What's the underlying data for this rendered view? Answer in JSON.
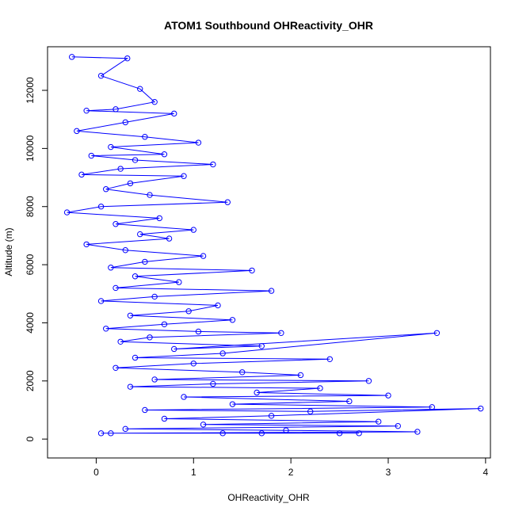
{
  "chart_data": {
    "type": "line",
    "title": "ATOM1 Southbound OHReactivity_OHR",
    "xlabel": "OHReactivity_OHR",
    "ylabel": "Altitude (m)",
    "xlim": [
      -0.5,
      4.05
    ],
    "ylim": [
      -650,
      13500
    ],
    "x_ticks": [
      0,
      1,
      2,
      3,
      4
    ],
    "x_tick_labels": [
      "0",
      "1",
      "2",
      "3",
      "4"
    ],
    "y_ticks": [
      0,
      2000,
      4000,
      6000,
      8000,
      10000,
      12000
    ],
    "y_tick_labels": [
      "0",
      "2000",
      "4000",
      "6000",
      "8000",
      "10000",
      "12000"
    ],
    "grid": false,
    "marker": "open-circle",
    "series_color": "#0000ff",
    "series": [
      {
        "x": [
          -0.25,
          0.32,
          0.05,
          0.45,
          0.6,
          0.2,
          -0.1,
          0.8,
          0.3,
          -0.2,
          0.5,
          1.05,
          0.15,
          0.7,
          -0.05,
          0.4,
          1.2,
          0.25,
          -0.15,
          0.9,
          0.35,
          0.1,
          0.55,
          1.35,
          0.05,
          -0.3,
          0.65,
          0.2,
          1.0,
          0.45,
          0.75,
          -0.1,
          0.3,
          1.1,
          0.5,
          0.15,
          1.6,
          0.4,
          0.85,
          0.2,
          1.8,
          0.6,
          0.05,
          1.25,
          0.95,
          0.35,
          1.4,
          0.7,
          0.1,
          1.05,
          1.9,
          0.55,
          0.25,
          1.7,
          0.8,
          3.5,
          1.3,
          0.4,
          2.4,
          1.0,
          0.2,
          1.5,
          2.1,
          0.6,
          2.8,
          1.2,
          0.35,
          2.3,
          1.65,
          3.0,
          0.9,
          2.6,
          1.4,
          3.45,
          0.5,
          2.2,
          3.95,
          1.8,
          0.7,
          2.9,
          1.1,
          3.1,
          0.3,
          1.95,
          3.3,
          0.15,
          2.5,
          1.3,
          0.05,
          1.7,
          2.7
        ],
        "y": [
          13150,
          13100,
          12500,
          12050,
          11600,
          11350,
          11300,
          11200,
          10900,
          10600,
          10400,
          10200,
          10050,
          9800,
          9750,
          9600,
          9450,
          9300,
          9100,
          9050,
          8800,
          8600,
          8400,
          8150,
          8000,
          7800,
          7600,
          7400,
          7200,
          7050,
          6900,
          6700,
          6500,
          6300,
          6100,
          5900,
          5800,
          5600,
          5400,
          5200,
          5100,
          4900,
          4750,
          4600,
          4400,
          4250,
          4100,
          3950,
          3800,
          3700,
          3650,
          3500,
          3350,
          3200,
          3100,
          3650,
          2950,
          2800,
          2750,
          2600,
          2450,
          2300,
          2200,
          2050,
          2000,
          1900,
          1800,
          1750,
          1600,
          1500,
          1450,
          1300,
          1200,
          1100,
          1000,
          950,
          1050,
          800,
          700,
          600,
          500,
          450,
          350,
          300,
          250,
          200,
          200,
          200,
          200,
          200,
          200
        ]
      }
    ]
  }
}
